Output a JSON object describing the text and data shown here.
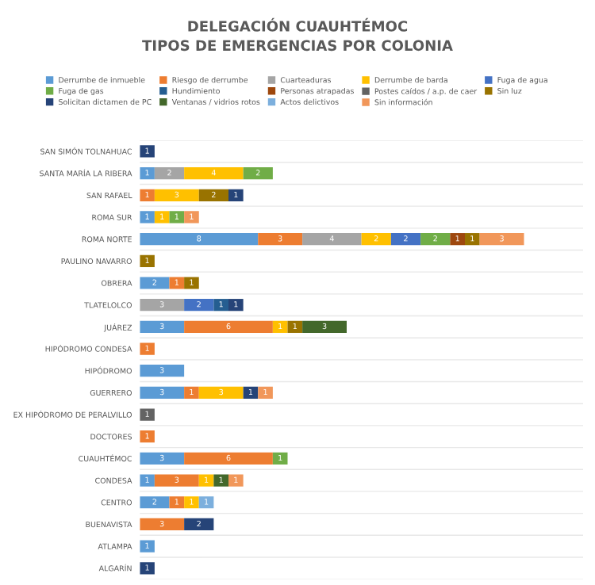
{
  "chart_data": {
    "type": "bar",
    "orientation": "horizontal",
    "stacked": true,
    "title": "DELEGACIÓN CUAUHTÉMOC\nTIPOS DE EMERGENCIAS POR COLONIA",
    "categories": [
      "SAN SIMÓN TOLNAHUAC",
      "SANTA MARÍA LA RIBERA",
      "SAN RAFAEL",
      "ROMA SUR",
      "ROMA NORTE",
      "PAULINO NAVARRO",
      "OBRERA",
      "TLATELOLCO",
      "JUÁREZ",
      "HIPÓDROMO CONDESA",
      "HIPÓDROMO",
      "GUERRERO",
      "EX HIPÓDROMO DE PERALVILLO",
      "DOCTORES",
      "CUAUHTÉMOC",
      "CONDESA",
      "CENTRO",
      "BUENAVISTA",
      "ATLAMPA",
      "ALGARÍN"
    ],
    "xlim": [
      0,
      30
    ],
    "data_labels": true,
    "legend": "top",
    "tick_labels": "y",
    "series": [
      {
        "name": "Derrumbe de inmueble",
        "color": "#5b9bd5",
        "values": [
          null,
          1,
          null,
          1,
          8,
          null,
          2,
          null,
          3,
          null,
          3,
          3,
          null,
          null,
          3,
          1,
          2,
          null,
          1,
          null
        ]
      },
      {
        "name": "Riesgo de derrumbe",
        "color": "#ed7d31",
        "values": [
          null,
          null,
          1,
          null,
          3,
          null,
          1,
          null,
          6,
          1,
          null,
          1,
          null,
          1,
          6,
          3,
          1,
          3,
          null,
          null
        ]
      },
      {
        "name": "Cuarteaduras",
        "color": "#a5a5a5",
        "values": [
          null,
          2,
          null,
          null,
          4,
          null,
          null,
          3,
          null,
          null,
          null,
          null,
          null,
          null,
          null,
          null,
          null,
          null,
          null,
          null
        ]
      },
      {
        "name": "Derrumbe de barda",
        "color": "#ffc000",
        "values": [
          null,
          4,
          3,
          1,
          2,
          null,
          null,
          null,
          1,
          null,
          null,
          3,
          null,
          null,
          null,
          1,
          1,
          null,
          null,
          null
        ]
      },
      {
        "name": "Fuga de agua",
        "color": "#4472c4",
        "values": [
          null,
          null,
          null,
          null,
          2,
          null,
          null,
          2,
          null,
          null,
          null,
          null,
          null,
          null,
          null,
          null,
          null,
          null,
          null,
          null
        ]
      },
      {
        "name": "Fuga de gas",
        "color": "#70ad47",
        "values": [
          null,
          2,
          null,
          1,
          2,
          null,
          null,
          null,
          null,
          null,
          null,
          null,
          null,
          null,
          1,
          null,
          null,
          null,
          null,
          null
        ]
      },
      {
        "name": "Hundimiento",
        "color": "#255e91",
        "values": [
          null,
          null,
          null,
          null,
          null,
          null,
          null,
          1,
          null,
          null,
          null,
          null,
          null,
          null,
          null,
          null,
          null,
          null,
          null,
          null
        ]
      },
      {
        "name": "Personas atrapadas",
        "color": "#9e480e",
        "values": [
          null,
          null,
          null,
          null,
          1,
          null,
          null,
          null,
          null,
          null,
          null,
          null,
          null,
          null,
          null,
          null,
          null,
          null,
          null,
          null
        ]
      },
      {
        "name": "Postes caídos / a.p. de caer",
        "color": "#636363",
        "values": [
          null,
          null,
          null,
          null,
          null,
          null,
          null,
          null,
          null,
          null,
          null,
          null,
          1,
          null,
          null,
          null,
          null,
          null,
          null,
          null
        ]
      },
      {
        "name": "Sin luz",
        "color": "#997300",
        "values": [
          null,
          null,
          2,
          null,
          1,
          1,
          1,
          null,
          1,
          null,
          null,
          null,
          null,
          null,
          null,
          null,
          null,
          null,
          null,
          null
        ]
      },
      {
        "name": "Solicitan dictamen de PC",
        "color": "#264478",
        "values": [
          1,
          null,
          1,
          null,
          null,
          null,
          null,
          1,
          null,
          null,
          null,
          1,
          null,
          null,
          null,
          null,
          null,
          2,
          null,
          1
        ]
      },
      {
        "name": "Ventanas / vidrios rotos",
        "color": "#43682b",
        "values": [
          null,
          null,
          null,
          null,
          null,
          null,
          null,
          null,
          3,
          null,
          null,
          null,
          null,
          null,
          null,
          1,
          null,
          null,
          null,
          null
        ]
      },
      {
        "name": "Actos delictivos",
        "color": "#7cafdd",
        "values": [
          null,
          null,
          null,
          null,
          null,
          null,
          null,
          null,
          null,
          null,
          null,
          null,
          null,
          null,
          null,
          null,
          1,
          null,
          null,
          null
        ]
      },
      {
        "name": "Sin información",
        "color": "#f1975a",
        "values": [
          null,
          null,
          null,
          1,
          3,
          null,
          null,
          null,
          null,
          null,
          null,
          1,
          null,
          null,
          null,
          1,
          null,
          null,
          null,
          null
        ]
      }
    ]
  }
}
